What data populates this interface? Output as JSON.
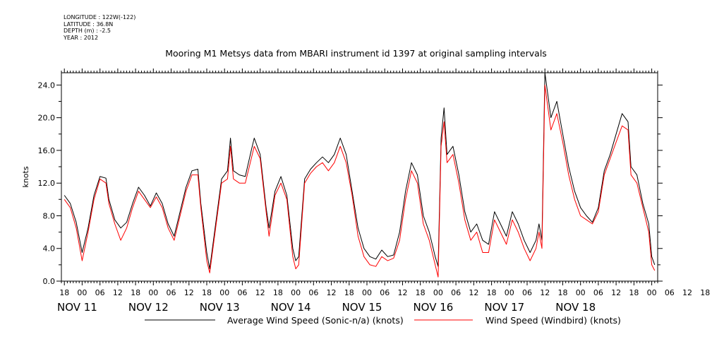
{
  "header": {
    "longitude": "LONGITUDE : 122W(-122)",
    "latitude": "LATITUDE : 36.8N",
    "depth": "DEPTH (m) : -2.5",
    "year": "YEAR : 2012"
  },
  "chart_data": {
    "type": "line",
    "title": "Mooring M1 Metsys data from MBARI instrument id 1397 at original sampling intervals",
    "ylabel": "knots",
    "ylim": [
      0,
      25.5
    ],
    "yticks": [
      "0.0",
      "4.0",
      "8.0",
      "12.0",
      "16.0",
      "20.0",
      "24.0"
    ],
    "xlim_hours": [
      -7,
      194
    ],
    "hour_ticks": [
      "18",
      "00",
      "06",
      "12",
      "18",
      "00",
      "06",
      "12",
      "18",
      "00",
      "06",
      "12",
      "18",
      "00",
      "06",
      "12",
      "18",
      "00",
      "06",
      "12",
      "18",
      "00",
      "06",
      "12",
      "18",
      "00",
      "06",
      "12",
      "18",
      "00",
      "06",
      "12",
      "18",
      "00",
      "06",
      "12",
      "18"
    ],
    "days": [
      "NOV 11",
      "NOV 12",
      "NOV 13",
      "NOV 14",
      "NOV 15",
      "NOV 16",
      "NOV 17",
      "NOV 18"
    ],
    "series": [
      {
        "name": "Average Wind Speed (Sonic-n/a) (knots)",
        "color": "#000000",
        "points": [
          [
            -6,
            10.5
          ],
          [
            -4,
            9.5
          ],
          [
            -2,
            7.2
          ],
          [
            0,
            3.5
          ],
          [
            2,
            6.5
          ],
          [
            4,
            10.5
          ],
          [
            6,
            12.8
          ],
          [
            8,
            12.6
          ],
          [
            9,
            10
          ],
          [
            11,
            7.5
          ],
          [
            13,
            6.5
          ],
          [
            15,
            7.2
          ],
          [
            17,
            9.5
          ],
          [
            19,
            11.5
          ],
          [
            21,
            10.5
          ],
          [
            23,
            9.2
          ],
          [
            25,
            10.8
          ],
          [
            27,
            9.5
          ],
          [
            29,
            7
          ],
          [
            31,
            5.5
          ],
          [
            33,
            8.5
          ],
          [
            35,
            11.5
          ],
          [
            37,
            13.5
          ],
          [
            39,
            13.7
          ],
          [
            40,
            9.5
          ],
          [
            42,
            3.5
          ],
          [
            43,
            1.5
          ],
          [
            45,
            7
          ],
          [
            47,
            12.5
          ],
          [
            49,
            13.5
          ],
          [
            50,
            17.5
          ],
          [
            51,
            13.5
          ],
          [
            53,
            13
          ],
          [
            55,
            12.8
          ],
          [
            57,
            16
          ],
          [
            58,
            17.5
          ],
          [
            60,
            15.5
          ],
          [
            62,
            9
          ],
          [
            63,
            6.5
          ],
          [
            65,
            11
          ],
          [
            67,
            12.8
          ],
          [
            69,
            10.5
          ],
          [
            71,
            4
          ],
          [
            72,
            2.5
          ],
          [
            73,
            3
          ],
          [
            75,
            12.5
          ],
          [
            77,
            13.7
          ],
          [
            79,
            14.5
          ],
          [
            81,
            15.2
          ],
          [
            83,
            14.5
          ],
          [
            85,
            15.5
          ],
          [
            87,
            17.5
          ],
          [
            89,
            15.5
          ],
          [
            91,
            11
          ],
          [
            93,
            6.5
          ],
          [
            95,
            4
          ],
          [
            97,
            3
          ],
          [
            99,
            2.7
          ],
          [
            101,
            3.8
          ],
          [
            103,
            3
          ],
          [
            105,
            3.2
          ],
          [
            107,
            6
          ],
          [
            109,
            11
          ],
          [
            111,
            14.5
          ],
          [
            113,
            13
          ],
          [
            115,
            8
          ],
          [
            117,
            6
          ],
          [
            119,
            3
          ],
          [
            120,
            1.8
          ],
          [
            121,
            17.5
          ],
          [
            122,
            21.2
          ],
          [
            123,
            15.5
          ],
          [
            125,
            16.5
          ],
          [
            127,
            13
          ],
          [
            129,
            8.5
          ],
          [
            131,
            6
          ],
          [
            133,
            7
          ],
          [
            135,
            5
          ],
          [
            137,
            4.5
          ],
          [
            139,
            8.5
          ],
          [
            141,
            7
          ],
          [
            143,
            5.5
          ],
          [
            145,
            8.5
          ],
          [
            147,
            7
          ],
          [
            149,
            5
          ],
          [
            151,
            3.5
          ],
          [
            153,
            5
          ],
          [
            154,
            7
          ],
          [
            155,
            5
          ],
          [
            156,
            25.5
          ],
          [
            158,
            20
          ],
          [
            160,
            22
          ],
          [
            162,
            18
          ],
          [
            164,
            14
          ],
          [
            166,
            11
          ],
          [
            168,
            9
          ],
          [
            170,
            8
          ],
          [
            172,
            7.2
          ],
          [
            174,
            9
          ],
          [
            176,
            13.5
          ],
          [
            178,
            15.5
          ],
          [
            180,
            18
          ],
          [
            182,
            20.5
          ],
          [
            184,
            19.5
          ],
          [
            185,
            14
          ],
          [
            187,
            13
          ],
          [
            189,
            9.5
          ],
          [
            191,
            7
          ],
          [
            192,
            3
          ],
          [
            193,
            2
          ]
        ]
      },
      {
        "name": "Wind Speed (Windbird) (knots)",
        "color": "#ff0000",
        "points": [
          [
            -6,
            10
          ],
          [
            -4,
            9
          ],
          [
            -2,
            6.5
          ],
          [
            0,
            2.5
          ],
          [
            2,
            6
          ],
          [
            4,
            10
          ],
          [
            6,
            12.5
          ],
          [
            8,
            12
          ],
          [
            9,
            9.5
          ],
          [
            11,
            7
          ],
          [
            13,
            5
          ],
          [
            15,
            6.5
          ],
          [
            17,
            9
          ],
          [
            19,
            11
          ],
          [
            21,
            10
          ],
          [
            23,
            9
          ],
          [
            25,
            10.3
          ],
          [
            27,
            9
          ],
          [
            29,
            6.5
          ],
          [
            31,
            5
          ],
          [
            33,
            8
          ],
          [
            35,
            11
          ],
          [
            37,
            13
          ],
          [
            39,
            13
          ],
          [
            40,
            9
          ],
          [
            42,
            2.5
          ],
          [
            43,
            1
          ],
          [
            45,
            6.5
          ],
          [
            47,
            12
          ],
          [
            49,
            12.5
          ],
          [
            50,
            16.5
          ],
          [
            51,
            12.5
          ],
          [
            53,
            12
          ],
          [
            55,
            12
          ],
          [
            57,
            15
          ],
          [
            58,
            16.5
          ],
          [
            60,
            15
          ],
          [
            62,
            8.5
          ],
          [
            63,
            5.5
          ],
          [
            65,
            10.5
          ],
          [
            67,
            12
          ],
          [
            69,
            10
          ],
          [
            71,
            3
          ],
          [
            72,
            1.5
          ],
          [
            73,
            2
          ],
          [
            75,
            12
          ],
          [
            77,
            13.2
          ],
          [
            79,
            14
          ],
          [
            81,
            14.5
          ],
          [
            83,
            13.5
          ],
          [
            85,
            14.5
          ],
          [
            87,
            16.5
          ],
          [
            89,
            14.5
          ],
          [
            91,
            10.5
          ],
          [
            93,
            5.5
          ],
          [
            95,
            3
          ],
          [
            97,
            2
          ],
          [
            99,
            1.8
          ],
          [
            101,
            3
          ],
          [
            103,
            2.5
          ],
          [
            105,
            2.8
          ],
          [
            107,
            5
          ],
          [
            109,
            10
          ],
          [
            111,
            13.5
          ],
          [
            113,
            12
          ],
          [
            115,
            7
          ],
          [
            117,
            5
          ],
          [
            119,
            2
          ],
          [
            120,
            0.5
          ],
          [
            121,
            16.5
          ],
          [
            122,
            19.5
          ],
          [
            123,
            14.5
          ],
          [
            125,
            15.5
          ],
          [
            127,
            12
          ],
          [
            129,
            7.5
          ],
          [
            131,
            5
          ],
          [
            133,
            6
          ],
          [
            135,
            3.5
          ],
          [
            137,
            3.5
          ],
          [
            139,
            7.5
          ],
          [
            141,
            6
          ],
          [
            143,
            4.5
          ],
          [
            145,
            7.5
          ],
          [
            147,
            6
          ],
          [
            149,
            4
          ],
          [
            151,
            2.5
          ],
          [
            153,
            4
          ],
          [
            154,
            6
          ],
          [
            155,
            4
          ],
          [
            156,
            24
          ],
          [
            158,
            18.5
          ],
          [
            160,
            20.5
          ],
          [
            162,
            17
          ],
          [
            164,
            13
          ],
          [
            166,
            10
          ],
          [
            168,
            8
          ],
          [
            170,
            7.5
          ],
          [
            172,
            7
          ],
          [
            174,
            8.5
          ],
          [
            176,
            13
          ],
          [
            178,
            15
          ],
          [
            180,
            17
          ],
          [
            182,
            19
          ],
          [
            184,
            18.5
          ],
          [
            185,
            13
          ],
          [
            187,
            12
          ],
          [
            189,
            9
          ],
          [
            191,
            6
          ],
          [
            192,
            2
          ],
          [
            193,
            1.3
          ]
        ]
      }
    ],
    "grid": false,
    "legend": "bottom"
  }
}
